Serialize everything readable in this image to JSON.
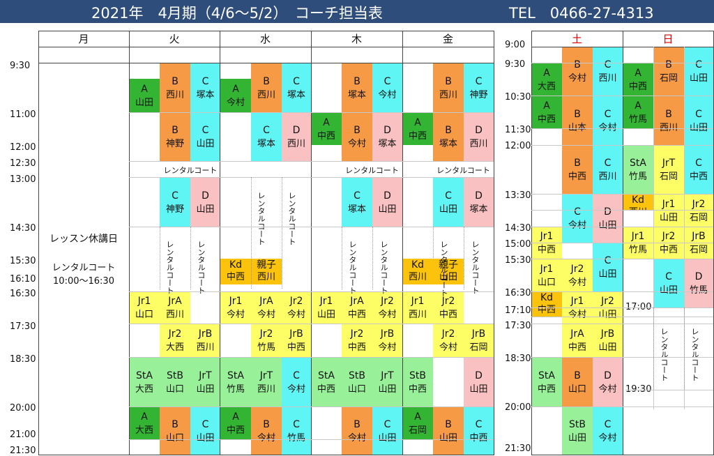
{
  "header": {
    "title": "2021年　4月期（4/6～5/2）　コーチ担当表",
    "tel": "TEL　0466-27-4313"
  },
  "days": [
    "月",
    "火",
    "水",
    "木",
    "金",
    "土",
    "日"
  ],
  "colors": {
    "A": "#33b433",
    "B": "#f79a45",
    "C": "#5ff5f5",
    "D": "#f9c1c1",
    "Jr": "#fdfd66",
    "St": "#98f098",
    "Kd": "#fcc30d",
    "oya": "#fcc30d",
    "header": "#2f4d7a"
  },
  "times_left": [
    "9:30",
    "11:00",
    "12:00",
    "12:30",
    "13:00",
    "14:30",
    "15:30",
    "16:10",
    "16:30",
    "17:30",
    "18:30",
    "20:00",
    "21:00",
    "21:30"
  ],
  "times_right": [
    "9:00",
    "9:30",
    "10:30",
    "11:30",
    "12:00",
    "13:30",
    "14:30",
    "15:00",
    "15:30",
    "16:30",
    "17:10",
    "17:30",
    "18:30",
    "20:00",
    "21:30"
  ],
  "times_sun": [
    "17:00",
    "19:30"
  ],
  "closed": {
    "title": "レッスン休講日",
    "rental": "レンタルコート",
    "hours": "10:00～16:30"
  },
  "rental": "レンタルコート",
  "rental_v": "レンタルコート",
  "rental_v2": "レンタ ルコート",
  "lessons": [
    {
      "id": "tue-a",
      "cls": "A",
      "name": "A",
      "coach": "山田"
    },
    {
      "id": "tue-b1",
      "cls": "B",
      "name": "B",
      "coach": "西川"
    },
    {
      "id": "tue-c1",
      "cls": "C",
      "name": "C",
      "coach": "塚本"
    },
    {
      "id": "tue-b2",
      "cls": "B",
      "name": "B",
      "coach": "神野"
    },
    {
      "id": "tue-c2",
      "cls": "C",
      "name": "C",
      "coach": "山田"
    },
    {
      "id": "tue-c3",
      "cls": "C",
      "name": "C",
      "coach": "神野"
    },
    {
      "id": "tue-d3",
      "cls": "D",
      "name": "D",
      "coach": "山田"
    },
    {
      "id": "tue-jr1",
      "cls": "Jr",
      "name": "Jr1",
      "coach": "山口"
    },
    {
      "id": "tue-jra",
      "cls": "Jr",
      "name": "JrA",
      "coach": "西川"
    },
    {
      "id": "tue-jr2",
      "cls": "Jr",
      "name": "Jr2",
      "coach": "大西"
    },
    {
      "id": "tue-jrb",
      "cls": "Jr",
      "name": "JrB",
      "coach": "西川"
    },
    {
      "id": "tue-sta",
      "cls": "St",
      "name": "StA",
      "coach": "大西"
    },
    {
      "id": "tue-stb",
      "cls": "St",
      "name": "StB",
      "coach": "山口"
    },
    {
      "id": "tue-jrt",
      "cls": "St",
      "name": "JrT",
      "coach": "山田"
    },
    {
      "id": "tue-a2",
      "cls": "A",
      "name": "A",
      "coach": "大西"
    },
    {
      "id": "tue-b4",
      "cls": "B",
      "name": "B",
      "coach": "山口"
    },
    {
      "id": "tue-c4",
      "cls": "C",
      "name": "C",
      "coach": "山田"
    },
    {
      "id": "wed-a",
      "cls": "A",
      "name": "A",
      "coach": "今村"
    },
    {
      "id": "wed-b1",
      "cls": "B",
      "name": "B",
      "coach": "西川"
    },
    {
      "id": "wed-c1",
      "cls": "C",
      "name": "C",
      "coach": "塚本"
    },
    {
      "id": "wed-c2",
      "cls": "C",
      "name": "C",
      "coach": "塚本"
    },
    {
      "id": "wed-d2",
      "cls": "D",
      "name": "D",
      "coach": "西川"
    },
    {
      "id": "wed-kd",
      "cls": "Kd",
      "name": "Kd",
      "coach": "中西"
    },
    {
      "id": "wed-oya",
      "cls": "oya",
      "name": "親子",
      "coach": "西川"
    },
    {
      "id": "wed-jr1",
      "cls": "Jr",
      "name": "Jr1",
      "coach": "今村"
    },
    {
      "id": "wed-jra",
      "cls": "Jr",
      "name": "JrA",
      "coach": "今村"
    },
    {
      "id": "wed-jr2",
      "cls": "Jr",
      "name": "Jr2",
      "coach": "今村"
    },
    {
      "id": "wed-jr2b",
      "cls": "Jr",
      "name": "Jr2",
      "coach": "竹馬"
    },
    {
      "id": "wed-jrb",
      "cls": "Jr",
      "name": "JrB",
      "coach": "中西"
    },
    {
      "id": "wed-sta",
      "cls": "St",
      "name": "StA",
      "coach": "竹馬"
    },
    {
      "id": "wed-jrt",
      "cls": "St",
      "name": "JrT",
      "coach": "西川"
    },
    {
      "id": "wed-c5",
      "cls": "C",
      "name": "C",
      "coach": "今村"
    },
    {
      "id": "wed-a2",
      "cls": "A",
      "name": "A",
      "coach": "中西"
    },
    {
      "id": "wed-b4",
      "cls": "B",
      "name": "B",
      "coach": "今村"
    },
    {
      "id": "wed-c4",
      "cls": "C",
      "name": "C",
      "coach": "竹馬"
    },
    {
      "id": "thu-b1",
      "cls": "B",
      "name": "B",
      "coach": "塚本"
    },
    {
      "id": "thu-c1",
      "cls": "C",
      "name": "C",
      "coach": "今村"
    },
    {
      "id": "thu-a",
      "cls": "A",
      "name": "A",
      "coach": "中西"
    },
    {
      "id": "thu-b2",
      "cls": "B",
      "name": "B",
      "coach": "今村"
    },
    {
      "id": "thu-d2",
      "cls": "D",
      "name": "D",
      "coach": "塚本"
    },
    {
      "id": "thu-c3",
      "cls": "C",
      "name": "C",
      "coach": "塚本"
    },
    {
      "id": "thu-d3",
      "cls": "D",
      "name": "D",
      "coach": "山田"
    },
    {
      "id": "thu-jr1",
      "cls": "Jr",
      "name": "Jr1",
      "coach": "山田"
    },
    {
      "id": "thu-jra",
      "cls": "Jr",
      "name": "JrA",
      "coach": "中西"
    },
    {
      "id": "thu-jr2",
      "cls": "Jr",
      "name": "Jr2",
      "coach": "今村"
    },
    {
      "id": "thu-jr2b",
      "cls": "Jr",
      "name": "Jr2",
      "coach": "中西"
    },
    {
      "id": "thu-jrb",
      "cls": "Jr",
      "name": "JrB",
      "coach": "今村"
    },
    {
      "id": "thu-sta",
      "cls": "St",
      "name": "StA",
      "coach": "中西"
    },
    {
      "id": "thu-stb",
      "cls": "St",
      "name": "StB",
      "coach": "山口"
    },
    {
      "id": "thu-jrt",
      "cls": "St",
      "name": "JrT",
      "coach": "山田"
    },
    {
      "id": "thu-b4",
      "cls": "B",
      "name": "B",
      "coach": "今村"
    },
    {
      "id": "thu-c4",
      "cls": "C",
      "name": "C",
      "coach": "山田"
    },
    {
      "id": "fri-b1",
      "cls": "B",
      "name": "B",
      "coach": "西川"
    },
    {
      "id": "fri-c1",
      "cls": "C",
      "name": "C",
      "coach": "神野"
    },
    {
      "id": "fri-a",
      "cls": "A",
      "name": "A",
      "coach": "中西"
    },
    {
      "id": "fri-b2",
      "cls": "B",
      "name": "B",
      "coach": "塚本"
    },
    {
      "id": "fri-d2",
      "cls": "D",
      "name": "D",
      "coach": "西川"
    },
    {
      "id": "fri-c3",
      "cls": "C",
      "name": "C",
      "coach": "山田"
    },
    {
      "id": "fri-d3",
      "cls": "D",
      "name": "D",
      "coach": "塚本"
    },
    {
      "id": "fri-kd",
      "cls": "Kd",
      "name": "Kd",
      "coach": "西川"
    },
    {
      "id": "fri-oya",
      "cls": "oya",
      "name": "親子",
      "coach": "山田"
    },
    {
      "id": "fri-jr1",
      "cls": "Jr",
      "name": "Jr1",
      "coach": "西川"
    },
    {
      "id": "fri-jr2",
      "cls": "Jr",
      "name": "Jr2",
      "coach": "中西"
    },
    {
      "id": "fri-jr2b",
      "cls": "Jr",
      "name": "Jr2",
      "coach": "今村"
    },
    {
      "id": "fri-jrb",
      "cls": "Jr",
      "name": "JrB",
      "coach": "石岡"
    },
    {
      "id": "fri-stb",
      "cls": "St",
      "name": "StB",
      "coach": "中西"
    },
    {
      "id": "fri-d5",
      "cls": "D",
      "name": "D",
      "coach": "山田"
    },
    {
      "id": "fri-a2",
      "cls": "A",
      "name": "A",
      "coach": "石岡"
    },
    {
      "id": "fri-b4",
      "cls": "B",
      "name": "B",
      "coach": "山田"
    },
    {
      "id": "fri-c4",
      "cls": "C",
      "name": "C",
      "coach": "中西"
    },
    {
      "id": "sat-a1",
      "cls": "A",
      "name": "A",
      "coach": "大西"
    },
    {
      "id": "sat-b1",
      "cls": "B",
      "name": "B",
      "coach": "今村"
    },
    {
      "id": "sat-c1",
      "cls": "C",
      "name": "C",
      "coach": "西川"
    },
    {
      "id": "sat-a2",
      "cls": "A",
      "name": "A",
      "coach": "中西"
    },
    {
      "id": "sat-b2",
      "cls": "B",
      "name": "B",
      "coach": "山本"
    },
    {
      "id": "sat-c2",
      "cls": "C",
      "name": "C",
      "coach": "今村"
    },
    {
      "id": "sat-b3",
      "cls": "B",
      "name": "B",
      "coach": "中西"
    },
    {
      "id": "sat-c3",
      "cls": "C",
      "name": "C",
      "coach": "西川"
    },
    {
      "id": "sat-c4",
      "cls": "C",
      "name": "C",
      "coach": "今村"
    },
    {
      "id": "sat-d4",
      "cls": "D",
      "name": "D",
      "coach": "山田"
    },
    {
      "id": "sat-jr1a",
      "cls": "Jr",
      "name": "Jr1",
      "coach": "中西"
    },
    {
      "id": "sat-c5",
      "cls": "C",
      "name": "C",
      "coach": "山田"
    },
    {
      "id": "sat-jr1b",
      "cls": "Jr",
      "name": "Jr1",
      "coach": "山口"
    },
    {
      "id": "sat-jr2",
      "cls": "Jr",
      "name": "Jr2",
      "coach": "今村"
    },
    {
      "id": "sat-kd",
      "cls": "Kd",
      "name": "Kd",
      "coach": "中西"
    },
    {
      "id": "sat-jr1c",
      "cls": "Jr",
      "name": "Jr1",
      "coach": "今村"
    },
    {
      "id": "sat-jr2b",
      "cls": "Jr",
      "name": "Jr2",
      "coach": "山田"
    },
    {
      "id": "sat-jra",
      "cls": "Jr",
      "name": "JrA",
      "coach": "中西"
    },
    {
      "id": "sat-jrb",
      "cls": "Jr",
      "name": "JrB",
      "coach": "山田"
    },
    {
      "id": "sat-sta",
      "cls": "St",
      "name": "StA",
      "coach": "中西"
    },
    {
      "id": "sat-b6",
      "cls": "B",
      "name": "B",
      "coach": "山口"
    },
    {
      "id": "sat-d6",
      "cls": "D",
      "name": "D",
      "coach": "今村"
    },
    {
      "id": "sat-stb",
      "cls": "St",
      "name": "StB",
      "coach": "山田"
    },
    {
      "id": "sat-c7",
      "cls": "C",
      "name": "C",
      "coach": "今村"
    },
    {
      "id": "sun-a1",
      "cls": "A",
      "name": "A",
      "coach": "中西"
    },
    {
      "id": "sun-b1",
      "cls": "B",
      "name": "B",
      "coach": "石岡"
    },
    {
      "id": "sun-c1",
      "cls": "C",
      "name": "C",
      "coach": "山田"
    },
    {
      "id": "sun-a2",
      "cls": "A",
      "name": "A",
      "coach": "竹馬"
    },
    {
      "id": "sun-b2",
      "cls": "B",
      "name": "B",
      "coach": "西川"
    },
    {
      "id": "sun-c2",
      "cls": "C",
      "name": "C",
      "coach": "山田"
    },
    {
      "id": "sun-sta",
      "cls": "St",
      "name": "StA",
      "coach": "竹馬"
    },
    {
      "id": "sun-jrt",
      "cls": "Jr",
      "name": "JrT",
      "coach": "石岡"
    },
    {
      "id": "sun-c3",
      "cls": "C",
      "name": "C",
      "coach": "中西"
    },
    {
      "id": "sun-kd",
      "cls": "Kd",
      "name": "Kd",
      "coach": "西川"
    },
    {
      "id": "sun-jr1a",
      "cls": "Jr",
      "name": "Jr1",
      "coach": "山田"
    },
    {
      "id": "sun-jr2a",
      "cls": "Jr",
      "name": "Jr2",
      "coach": "石岡"
    },
    {
      "id": "sun-jr1b",
      "cls": "Jr",
      "name": "Jr1",
      "coach": "竹馬"
    },
    {
      "id": "sun-jr2b",
      "cls": "Jr",
      "name": "Jr2",
      "coach": "中西"
    },
    {
      "id": "sun-jrb",
      "cls": "Jr",
      "name": "JrB",
      "coach": "石岡"
    },
    {
      "id": "sun-c5",
      "cls": "C",
      "name": "C",
      "coach": "山田"
    },
    {
      "id": "sun-d5",
      "cls": "D",
      "name": "D",
      "coach": "竹馬"
    }
  ]
}
